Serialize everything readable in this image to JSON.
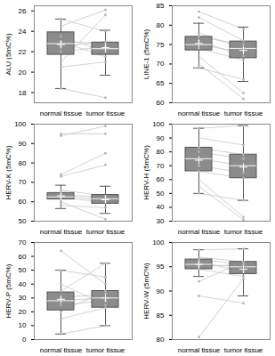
{
  "chart_data": [
    {
      "type": "box",
      "y_label": "ALU (5mC%)",
      "categories": [
        "normal tissue",
        "tumor tissue"
      ],
      "ylim": [
        17,
        26.5
      ],
      "yticks": [
        18,
        20,
        22,
        24,
        26
      ],
      "color": "#8c8c8c",
      "marker": "plus",
      "boxes": [
        {
          "whisker_low": 18.4,
          "q1": 21.7,
          "median": 22.8,
          "q3": 23.9,
          "whisker_high": 25.2,
          "mean": 22.7
        },
        {
          "whisker_low": 19.7,
          "q1": 21.7,
          "median": 22.3,
          "q3": 22.9,
          "whisker_high": 24.1,
          "mean": 22.4
        }
      ],
      "pairs": [
        [
          22,
          22.5
        ],
        [
          23,
          21.5
        ],
        [
          24.5,
          26.1
        ],
        [
          21,
          25.6
        ],
        [
          18.4,
          17.5
        ],
        [
          23.5,
          22
        ],
        [
          22.5,
          23
        ],
        [
          25.2,
          24
        ],
        [
          20.5,
          21
        ],
        [
          23,
          22.8
        ]
      ]
    },
    {
      "type": "box",
      "y_label": "LINE-1 (5mC%)",
      "categories": [
        "normal tissue",
        "tumor tissue"
      ],
      "ylim": [
        60,
        85
      ],
      "yticks": [
        60,
        65,
        70,
        75,
        80,
        85
      ],
      "color": "#8c8c8c",
      "marker": "plus",
      "boxes": [
        {
          "whisker_low": 69,
          "q1": 73.5,
          "median": 75,
          "q3": 77,
          "whisker_high": 80.5,
          "mean": 75.3
        },
        {
          "whisker_low": 65.5,
          "q1": 71.5,
          "median": 74,
          "q3": 75.8,
          "whisker_high": 79.5,
          "mean": 73.5
        }
      ],
      "pairs": [
        [
          75,
          73
        ],
        [
          77,
          75
        ],
        [
          83.5,
          79
        ],
        [
          82,
          76
        ],
        [
          70,
          61
        ],
        [
          72,
          62.5
        ],
        [
          74,
          71
        ],
        [
          78,
          74
        ],
        [
          69,
          66
        ],
        [
          76,
          72
        ]
      ]
    },
    {
      "type": "box",
      "y_label": "HERV-K (5mC%)",
      "categories": [
        "normal tissue",
        "tumor tissue"
      ],
      "ylim": [
        50,
        100
      ],
      "yticks": [
        50,
        60,
        70,
        80,
        90,
        100
      ],
      "color": "#8c8c8c",
      "marker": "plus",
      "boxes": [
        {
          "whisker_low": 56.5,
          "q1": 61.2,
          "median": 62.5,
          "q3": 64.5,
          "whisker_high": 68.5,
          "mean": 63
        },
        {
          "whisker_low": 54,
          "q1": 59,
          "median": 61.5,
          "q3": 63.5,
          "whisker_high": 68,
          "mean": 61
        }
      ],
      "pairs": [
        [
          62,
          60
        ],
        [
          63,
          61
        ],
        [
          94,
          99
        ],
        [
          95,
          95
        ],
        [
          74,
          85
        ],
        [
          73,
          79
        ],
        [
          60,
          51
        ],
        [
          64,
          62
        ],
        [
          58,
          57
        ],
        [
          66,
          63
        ]
      ]
    },
    {
      "type": "box",
      "y_label": "HERV-H (5mC%)",
      "categories": [
        "normal tissue",
        "tumor tissue"
      ],
      "ylim": [
        30,
        100
      ],
      "yticks": [
        30,
        40,
        50,
        60,
        70,
        80,
        90,
        100
      ],
      "color": "#8c8c8c",
      "marker": "plus",
      "boxes": [
        {
          "whisker_low": 50,
          "q1": 66,
          "median": 75,
          "q3": 83,
          "whisker_high": 97,
          "mean": 74
        },
        {
          "whisker_low": 45,
          "q1": 61,
          "median": 70,
          "q3": 78,
          "whisker_high": 99,
          "mean": 69
        }
      ],
      "pairs": [
        [
          75,
          70
        ],
        [
          83,
          78
        ],
        [
          60,
          33
        ],
        [
          55,
          31
        ],
        [
          97,
          99
        ],
        [
          50,
          45
        ],
        [
          70,
          65
        ],
        [
          80,
          75
        ],
        [
          66,
          61
        ],
        [
          90,
          85
        ]
      ]
    },
    {
      "type": "box",
      "y_label": "HERV-P (5mC%)",
      "categories": [
        "normal tissue",
        "tumor tissue"
      ],
      "ylim": [
        0,
        70
      ],
      "yticks": [
        0,
        10,
        20,
        30,
        40,
        50,
        60,
        70
      ],
      "color": "#8c8c8c",
      "marker": "plus",
      "boxes": [
        {
          "whisker_low": 4,
          "q1": 21,
          "median": 28,
          "q3": 34,
          "whisker_high": 50,
          "mean": 29
        },
        {
          "whisker_low": 10,
          "q1": 23,
          "median": 30,
          "q3": 35,
          "whisker_high": 55,
          "mean": 30
        }
      ],
      "pairs": [
        [
          28,
          30
        ],
        [
          20,
          35
        ],
        [
          64,
          40
        ],
        [
          4,
          10
        ],
        [
          35,
          55
        ],
        [
          40,
          25
        ],
        [
          15,
          23
        ],
        [
          30,
          33
        ],
        [
          50,
          45
        ],
        [
          25,
          28
        ]
      ]
    },
    {
      "type": "box",
      "y_label": "HERV-W (5mC%)",
      "categories": [
        "normal tissue",
        "tumor tissue"
      ],
      "ylim": [
        80,
        100
      ],
      "yticks": [
        80,
        85,
        90,
        95,
        100
      ],
      "color": "#8c8c8c",
      "marker": "plus",
      "boxes": [
        {
          "whisker_low": 93,
          "q1": 94.5,
          "median": 95.5,
          "q3": 96.5,
          "whisker_high": 98.5,
          "mean": 95.5
        },
        {
          "whisker_low": 89,
          "q1": 93.5,
          "median": 95,
          "q3": 96,
          "whisker_high": 98.7,
          "mean": 94.5
        }
      ],
      "pairs": [
        [
          95.5,
          95
        ],
        [
          96,
          94
        ],
        [
          80.5,
          92.5
        ],
        [
          89,
          87.5
        ],
        [
          92,
          96
        ],
        [
          98.5,
          98.7
        ],
        [
          94.5,
          93
        ],
        [
          97,
          96
        ],
        [
          95,
          95.5
        ],
        [
          96.5,
          95.5
        ]
      ]
    }
  ]
}
